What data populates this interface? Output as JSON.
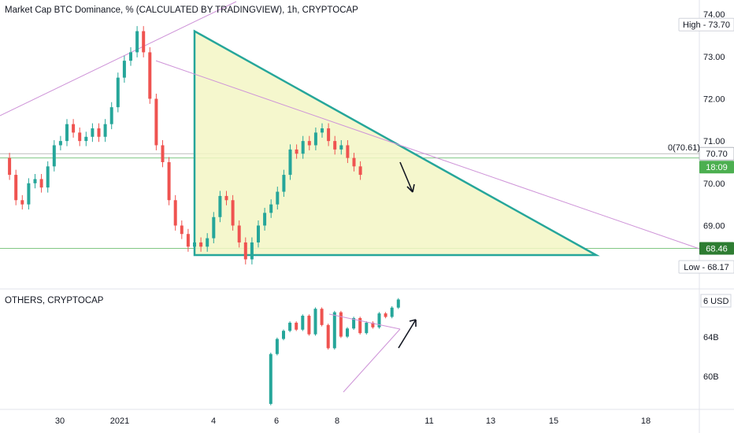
{
  "chart_data": [
    {
      "type": "line",
      "title": "Market Cap BTC Dominance, % (CALCULATED BY TRADINGVIEW), 1h, CRYPTOCAP",
      "ylim": [
        67.5,
        74.3
      ],
      "y_ticks": [
        "74.00",
        "73.00",
        "72.00",
        "71.00",
        "70.00",
        "69.00"
      ],
      "x_ticks": [
        "30",
        "2021",
        "4",
        "6",
        "8",
        "11",
        "13",
        "15",
        "18"
      ],
      "x": [
        0,
        0.5,
        1,
        1.5,
        2,
        2.5,
        3,
        3.5,
        4,
        4.5,
        5,
        5.5,
        6,
        6.5,
        7,
        7.5,
        8,
        8.5,
        9,
        9.5,
        10,
        10.5,
        11,
        11.5,
        12,
        12.5
      ],
      "series": [
        {
          "values": [
            70.6,
            70.2,
            69.6,
            69.5,
            70.0,
            70.1,
            69.9,
            70.4,
            70.9,
            71.0,
            71.4,
            71.2,
            71.0,
            71.1,
            71.3,
            71.1,
            71.4,
            71.8,
            72.5,
            72.9,
            73.1,
            73.6,
            73.1,
            72.0,
            70.9,
            70.5
          ]
        }
      ],
      "series_b_x": [
        12.5,
        13,
        13.5,
        14,
        14.5,
        15,
        15.5,
        16,
        16.5,
        17,
        17.5,
        18,
        18.5,
        19,
        19.5,
        20,
        20.5,
        21,
        21.5,
        22,
        22.5,
        23,
        23.5,
        24,
        24.5,
        25,
        25.5,
        26,
        26.5,
        27,
        27.5,
        28
      ],
      "series_b": [
        70.5,
        69.6,
        69.0,
        68.8,
        68.5,
        68.6,
        68.5,
        68.7,
        69.2,
        69.7,
        69.6,
        69.0,
        68.6,
        68.2,
        68.6,
        69.0,
        69.3,
        69.5,
        69.8,
        70.2,
        70.8,
        70.7,
        71.0,
        70.9,
        71.2,
        71.3,
        71.0,
        70.8,
        70.9,
        70.6,
        70.4,
        70.2
      ],
      "price_labels": {
        "high": "High - 73.70",
        "low": "Low - 68.17",
        "last": "70.70",
        "countdown": "18:09",
        "level": "68.46",
        "prev": "0(70.61)"
      },
      "colors": {
        "up": "#26a69a",
        "down": "#ef5350",
        "pattern": "#26a69a",
        "pattern_fill": "#f3f6c4",
        "trendline": "#ce93d8"
      }
    },
    {
      "type": "line",
      "title": "OTHERS, CRYPTOCAP",
      "y_unit": "USD",
      "y_ticks": [
        "6",
        "64B",
        "60B"
      ],
      "ylim": [
        57,
        66.5
      ],
      "x": [
        18.5,
        19,
        19.5,
        20,
        20.5,
        21,
        21.5,
        22,
        22.5,
        23,
        23.5,
        24,
        24.5,
        25,
        25.5,
        26,
        26.5,
        27,
        27.5,
        28,
        28.5,
        29
      ],
      "series": [
        {
          "values": [
            57.2,
            61.5,
            62.8,
            63.5,
            64.2,
            63.6,
            64.8,
            63.2,
            65.4,
            64.0,
            62.0,
            65.1,
            63.0,
            63.7,
            64.6,
            63.3,
            64.2,
            63.8,
            65.0,
            64.7,
            65.5,
            66.2
          ]
        }
      ]
    }
  ]
}
